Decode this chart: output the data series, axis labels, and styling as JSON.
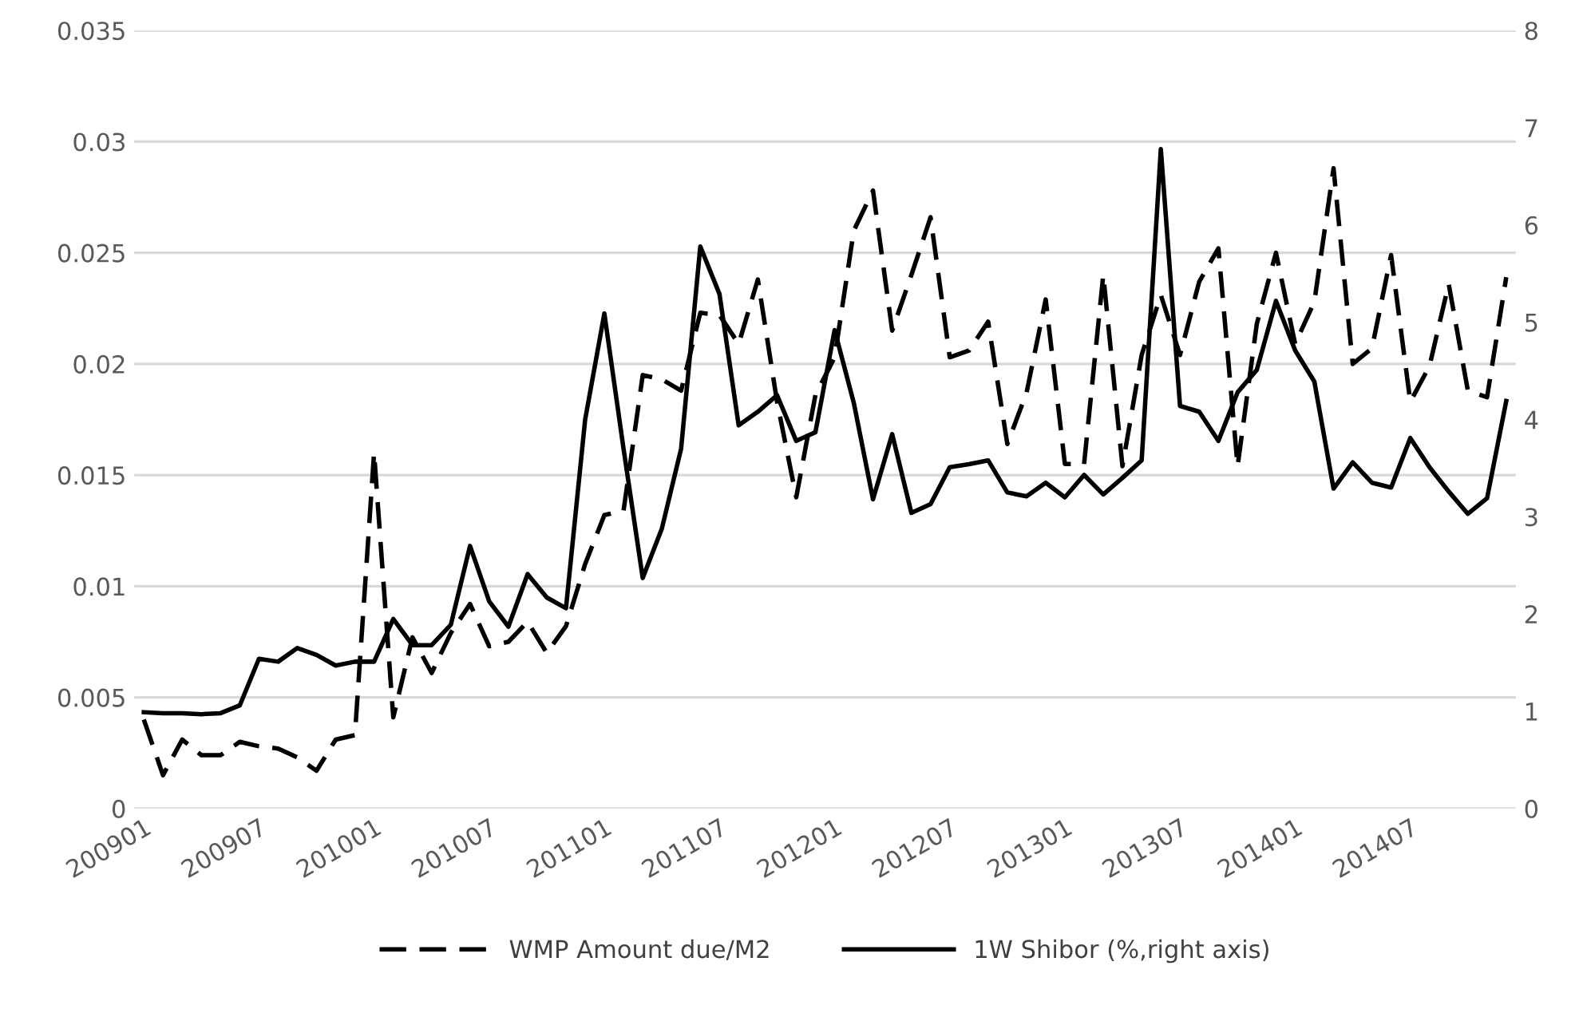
{
  "chart_data": {
    "type": "line",
    "categories": [
      "200901",
      null,
      null,
      null,
      null,
      null,
      "200907",
      null,
      null,
      null,
      null,
      null,
      "201001",
      null,
      null,
      null,
      null,
      null,
      "201007",
      null,
      null,
      null,
      null,
      null,
      "201101",
      null,
      null,
      null,
      null,
      null,
      "201107",
      null,
      null,
      null,
      null,
      null,
      "201201",
      null,
      null,
      null,
      null,
      null,
      "201207",
      null,
      null,
      null,
      null,
      null,
      "201301",
      null,
      null,
      null,
      null,
      null,
      "201307",
      null,
      null,
      null,
      null,
      null,
      "201401",
      null,
      null,
      null,
      null,
      null,
      "201407",
      null,
      null,
      null,
      null,
      null
    ],
    "series": [
      {
        "name": "WMP Amount due/M2",
        "color": "#000000",
        "line_style": "dashed",
        "values": [
          0.004,
          0.0015,
          0.0031,
          0.0024,
          0.0024,
          0.003,
          0.0028,
          0.0027,
          0.0023,
          0.0017,
          0.0031,
          0.0033,
          0.016,
          0.0041,
          0.0077,
          0.0061,
          0.0079,
          0.0092,
          0.0073,
          0.0075,
          0.0084,
          0.007,
          0.0082,
          0.011,
          0.0132,
          0.0134,
          0.0195,
          0.0193,
          0.0188,
          0.0223,
          0.0222,
          0.0209,
          0.0238,
          0.0183,
          0.014,
          0.0186,
          0.0203,
          0.026,
          0.0278,
          0.0215,
          0.024,
          0.0266,
          0.0203,
          0.0206,
          0.0219,
          0.0164,
          0.0187,
          0.0229,
          0.0155,
          0.0155,
          0.024,
          0.0154,
          0.0204,
          0.0231,
          0.0204,
          0.0237,
          0.0252,
          0.0154,
          0.0218,
          0.025,
          0.0209,
          0.0228,
          0.0288,
          0.02,
          0.0207,
          0.0249,
          0.0183,
          0.0199,
          0.0236,
          0.0188,
          0.0185,
          0.0239
        ]
      },
      {
        "name": "1W Shibor (%,right axis)",
        "color": "#000000",
        "line_style": "solid",
        "axis": "y2",
        "values": [
          0.99,
          0.98,
          0.98,
          0.97,
          0.98,
          1.06,
          1.54,
          1.51,
          1.65,
          1.58,
          1.47,
          1.51,
          1.51,
          1.95,
          1.68,
          1.68,
          1.89,
          2.7,
          2.13,
          1.87,
          2.41,
          2.17,
          2.06,
          4.0,
          5.09,
          3.7,
          2.37,
          2.88,
          3.7,
          5.78,
          5.29,
          3.94,
          4.08,
          4.25,
          3.78,
          3.87,
          4.92,
          4.17,
          3.18,
          3.85,
          3.04,
          3.13,
          3.51,
          3.54,
          3.58,
          3.25,
          3.21,
          3.35,
          3.2,
          3.43,
          3.23,
          3.4,
          3.58,
          6.78,
          4.14,
          4.08,
          3.78,
          4.28,
          4.51,
          5.22,
          4.71,
          4.39,
          3.29,
          3.56,
          3.35,
          3.3,
          3.81,
          3.51,
          3.26,
          3.03,
          3.19,
          4.19
        ]
      }
    ],
    "ylim": [
      0,
      0.035
    ],
    "yticks": [
      0,
      0.005,
      0.01,
      0.015,
      0.02,
      0.025,
      0.03,
      0.035
    ],
    "y2lim": [
      0,
      8
    ],
    "y2ticks": [
      0,
      1,
      2,
      3,
      4,
      5,
      6,
      7,
      8
    ],
    "grid": "y",
    "legend": "bottom",
    "marker": "none"
  }
}
